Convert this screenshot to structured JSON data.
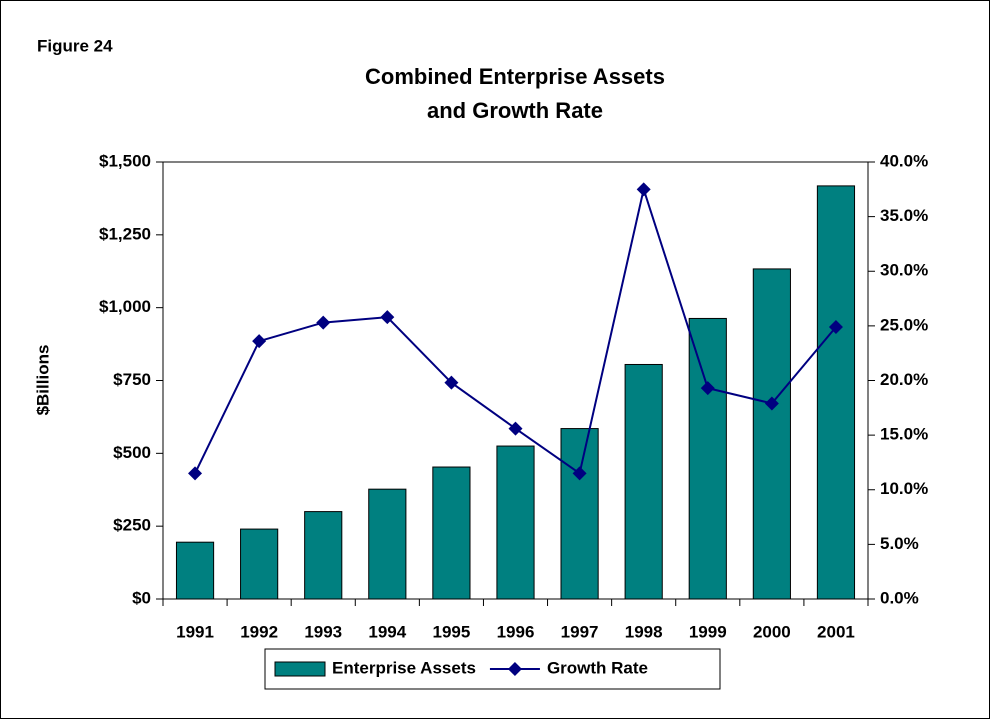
{
  "figure_label": "Figure 24",
  "chart_data": {
    "type": "bar_line",
    "title": [
      "Combined Enterprise Assets",
      "and Growth Rate"
    ],
    "y_label": "$Billions",
    "categories": [
      "1991",
      "1992",
      "1993",
      "1994",
      "1995",
      "1996",
      "1997",
      "1998",
      "1999",
      "2000",
      "2001"
    ],
    "series": [
      {
        "name": "Enterprise Assets",
        "type": "bar",
        "color": "#008080",
        "values": [
          195,
          240,
          300,
          377,
          453,
          525,
          585,
          805,
          963,
          1133,
          1418
        ]
      },
      {
        "name": "Growth Rate",
        "type": "line",
        "axis": "y2",
        "color": "#000080",
        "values": [
          11.5,
          23.6,
          25.3,
          25.8,
          19.8,
          15.6,
          11.5,
          37.5,
          19.3,
          17.9,
          24.9
        ]
      }
    ],
    "ylim": [
      0,
      1500
    ],
    "yticks": [
      {
        "value": 0,
        "label": "$0"
      },
      {
        "value": 250,
        "label": "$250"
      },
      {
        "value": 500,
        "label": "$500"
      },
      {
        "value": 750,
        "label": "$750"
      },
      {
        "value": 1000,
        "label": "$1,000"
      },
      {
        "value": 1250,
        "label": "$1,250"
      },
      {
        "value": 1500,
        "label": "$1,500"
      }
    ],
    "y2lim": [
      0,
      40
    ],
    "y2ticks": [
      {
        "value": 0,
        "label": "0.0%"
      },
      {
        "value": 5,
        "label": "5.0%"
      },
      {
        "value": 10,
        "label": "10.0%"
      },
      {
        "value": 15,
        "label": "15.0%"
      },
      {
        "value": 20,
        "label": "20.0%"
      },
      {
        "value": 25,
        "label": "25.0%"
      },
      {
        "value": 30,
        "label": "30.0%"
      },
      {
        "value": 35,
        "label": "35.0%"
      },
      {
        "value": 40,
        "label": "40.0%"
      }
    ],
    "grid": false,
    "legend": "bottom"
  }
}
